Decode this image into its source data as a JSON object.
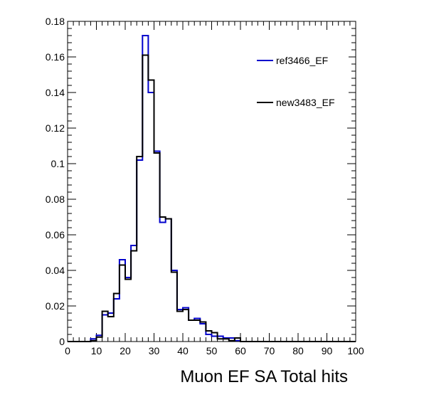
{
  "chart_data": {
    "type": "line",
    "style": "step-histogram",
    "title": "",
    "xlabel": "Muon EF SA Total hits",
    "ylabel": "",
    "xlim": [
      0,
      100
    ],
    "ylim": [
      0,
      0.18
    ],
    "x_ticks": [
      "0",
      "10",
      "20",
      "30",
      "40",
      "50",
      "60",
      "70",
      "80",
      "90",
      "100"
    ],
    "y_ticks": [
      "0",
      "0.02",
      "0.04",
      "0.06",
      "0.08",
      "0.1",
      "0.12",
      "0.14",
      "0.16",
      "0.18"
    ],
    "grid": false,
    "legend_position": "top-right",
    "bin_edges": [
      0,
      2,
      4,
      6,
      8,
      10,
      12,
      14,
      16,
      18,
      20,
      22,
      24,
      26,
      28,
      30,
      32,
      34,
      36,
      38,
      40,
      42,
      44,
      46,
      48,
      50,
      52,
      54,
      56,
      58,
      60,
      62,
      64,
      66,
      68,
      70,
      72,
      74,
      76,
      78,
      80,
      82,
      84,
      86,
      88,
      90,
      92,
      94,
      96,
      98,
      100
    ],
    "series": [
      {
        "name": "ref3466_EF",
        "color": "#0000cc",
        "values": [
          0,
          0,
          0,
          0,
          0.0015,
          0.0035,
          0.015,
          0.016,
          0.024,
          0.046,
          0.036,
          0.054,
          0.102,
          0.172,
          0.14,
          0.107,
          0.067,
          0.069,
          0.04,
          0.018,
          0.019,
          0.012,
          0.013,
          0.01,
          0.004,
          0.003,
          0.003,
          0.002,
          0.002,
          0.0005,
          0,
          0,
          0,
          0,
          0,
          0,
          0,
          0,
          0,
          0,
          0,
          0,
          0,
          0,
          0,
          0,
          0,
          0,
          0,
          0
        ]
      },
      {
        "name": "new3483_EF",
        "color": "#000000",
        "values": [
          0,
          0,
          0,
          0,
          0.0005,
          0.0025,
          0.017,
          0.014,
          0.027,
          0.043,
          0.035,
          0.051,
          0.104,
          0.161,
          0.147,
          0.106,
          0.07,
          0.069,
          0.039,
          0.017,
          0.018,
          0.012,
          0.012,
          0.011,
          0.006,
          0.005,
          0.0015,
          0.0015,
          0.0005,
          0.002,
          0,
          0,
          0,
          0,
          0,
          0,
          0,
          0,
          0,
          0,
          0,
          0,
          0,
          0,
          0,
          0,
          0,
          0,
          0,
          0
        ]
      }
    ]
  }
}
